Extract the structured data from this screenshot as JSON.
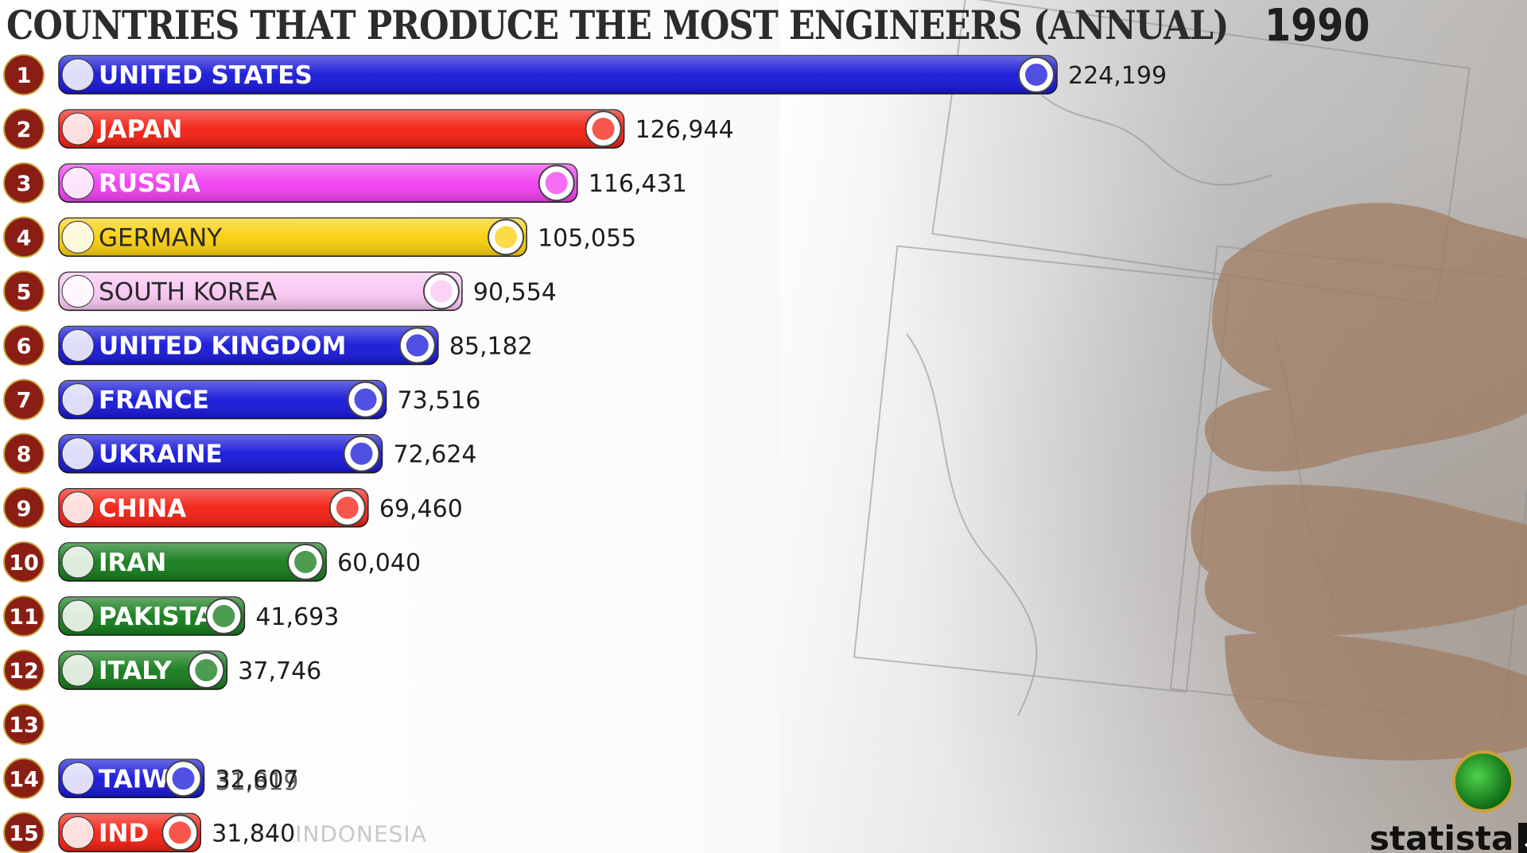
{
  "title": "COUNTRIES THAT PRODUCE THE MOST ENGINEERS (ANNUAL)",
  "year": "1990",
  "brand": "statista",
  "colors": {
    "rank_badge": "#8b1e14",
    "value_text": "#1c1c1c"
  },
  "chart_data": {
    "type": "bar",
    "orientation": "horizontal",
    "title": "COUNTRIES THAT PRODUCE THE MOST ENGINEERS (ANNUAL)",
    "year": "1990",
    "xlim": [
      0,
      224199
    ],
    "grid": false,
    "legend": "none",
    "ranks": [
      "1",
      "2",
      "3",
      "4",
      "5",
      "6",
      "7",
      "8",
      "9",
      "10",
      "11",
      "12",
      "13",
      "14",
      "15"
    ],
    "bars": [
      {
        "rank": 1,
        "label": "UNITED STATES",
        "value": 224199,
        "value_text": "224,199",
        "color": "#1515d8",
        "flag": "us-flag-icon",
        "emblem": "us-seal-icon"
      },
      {
        "rank": 2,
        "label": "JAPAN",
        "value": 126944,
        "value_text": "126,944",
        "color": "#f31d10",
        "flag": "japan-flag-icon",
        "emblem": "japan-chrysanthemum-icon"
      },
      {
        "rank": 3,
        "label": "RUSSIA",
        "value": 116431,
        "value_text": "116,431",
        "color": "#f03df0",
        "flag": "russia-flag-icon",
        "emblem": "russia-eagle-icon"
      },
      {
        "rank": 4,
        "label": "GERMANY",
        "value": 105055,
        "value_text": "105,055",
        "color": "#f9cf0a",
        "flag": "germany-flag-icon",
        "emblem": "germany-eagle-icon",
        "dark_text": true
      },
      {
        "rank": 5,
        "label": "SOUTH KOREA",
        "value": 90554,
        "value_text": "90,554",
        "color": "#f9c6f2",
        "flag": "south-korea-flag-icon",
        "emblem": "korea-emblem-icon",
        "dark_text": true
      },
      {
        "rank": 6,
        "label": "UNITED KINGDOM",
        "value": 85182,
        "value_text": "85,182",
        "color": "#1515d8",
        "flag": "uk-flag-icon",
        "emblem": "uk-coat-of-arms-icon"
      },
      {
        "rank": 7,
        "label": "FRANCE",
        "value": 73516,
        "value_text": "73,516",
        "color": "#1515d8",
        "flag": "france-flag-icon",
        "emblem": "france-emblem-icon"
      },
      {
        "rank": 8,
        "label": "UKRAINE",
        "value": 72624,
        "value_text": "72,624",
        "color": "#1515d8",
        "flag": "ukraine-flag-icon",
        "emblem": "ukraine-trident-icon"
      },
      {
        "rank": 9,
        "label": "CHINA",
        "value": 69460,
        "value_text": "69,460",
        "color": "#f31d10",
        "flag": "china-flag-icon",
        "emblem": "china-emblem-icon"
      },
      {
        "rank": 10,
        "label": "IRAN",
        "value": 60040,
        "value_text": "60,040",
        "color": "#137a18",
        "flag": "iran-flag-icon",
        "emblem": "iran-emblem-icon"
      },
      {
        "rank": 11,
        "label": "PAKISTA",
        "value": 41693,
        "value_text": "41,693",
        "color": "#137a18",
        "flag": "pakistan-flag-icon",
        "emblem": "pakistan-emblem-icon"
      },
      {
        "rank": 12,
        "label": "ITALY",
        "value": 37746,
        "value_text": "37,746",
        "color": "#137a18",
        "flag": "italy-flag-icon",
        "emblem": "italy-emblem-icon"
      },
      {
        "rank": 14,
        "label": "TAIW",
        "value": 32607,
        "value_text": "32,607",
        "value_text_overlap": "31,819",
        "color": "#1515d8",
        "flag": "taiwan-flag-icon",
        "emblem": "taiwan-sun-icon"
      },
      {
        "rank": 15,
        "label": "IND",
        "value": 31840,
        "value_text": "31,840",
        "color": "#f31d10",
        "flag": "indonesia-flag-icon",
        "emblem": "indonesia-garuda-icon",
        "ghost_label": "INDONESIA"
      }
    ]
  }
}
